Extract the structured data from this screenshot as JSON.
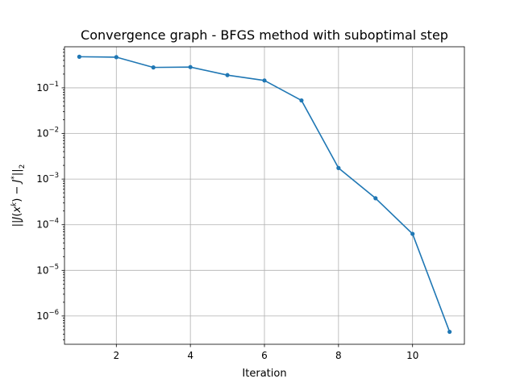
{
  "chart_data": {
    "type": "line",
    "title": "Convergence graph - BFGS method with suboptimal step",
    "xlabel": "Iteration",
    "ylabel": "||J(x^k) - J^*||_2",
    "yscale": "log",
    "xlim": [
      0.6,
      11.4
    ],
    "ylim_log10": [
      -6.62,
      -0.1
    ],
    "xticks": [
      2,
      4,
      6,
      8,
      10
    ],
    "yticks_exponents": [
      -6,
      -5,
      -4,
      -3,
      -2,
      -1
    ],
    "grid": true,
    "series": [
      {
        "color": "#1f77b4",
        "marker": "circle",
        "x": [
          1,
          2,
          3,
          4,
          5,
          6,
          7,
          8,
          9,
          10,
          11
        ],
        "y": [
          0.48,
          0.47,
          0.28,
          0.285,
          0.19,
          0.145,
          0.053,
          0.00175,
          0.00038,
          6.3e-05,
          4.5e-07
        ]
      }
    ]
  }
}
